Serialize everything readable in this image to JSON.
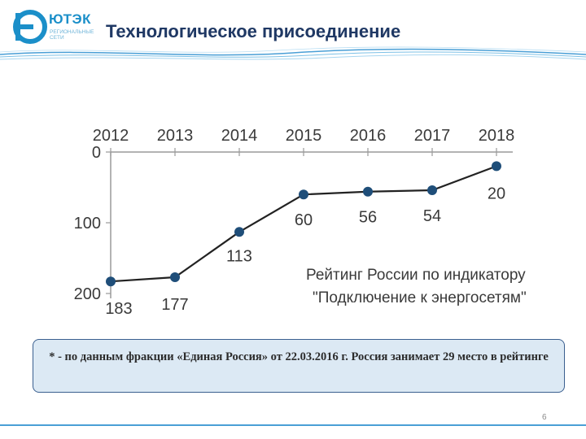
{
  "header": {
    "logo_text": "ЮТЭК",
    "logo_subtitle": "РЕГИОНАЛЬНЫЕ СЕТИ",
    "title": "Технологическое присоединение"
  },
  "colors": {
    "title": "#1f3864",
    "brand": "#1b8fc9",
    "line": "#222222",
    "point": "#1f4e79",
    "note_bg": "#dce9f4",
    "note_border": "#3a5f8f",
    "footer_line": "#4a9fd6"
  },
  "chart_data": {
    "type": "line",
    "categories": [
      "2012",
      "2013",
      "2014",
      "2015",
      "2016",
      "2017",
      "2018"
    ],
    "values": [
      183,
      177,
      113,
      60,
      56,
      54,
      20
    ],
    "data_labels": [
      "183",
      "177",
      "113",
      "60",
      "56",
      "54",
      "20"
    ],
    "y_ticks": [
      "0",
      "100",
      "200"
    ],
    "ylim": [
      0,
      200
    ],
    "y_inverted": true,
    "x_axis_position": "top",
    "grid": false,
    "annotation": [
      "Рейтинг России по индикатору",
      "\"Подключение к энергосетям\""
    ]
  },
  "note": {
    "text": "* - по данным фракции «Единая Россия» от 22.03.2016 г. Россия занимает 29 место в рейтинге"
  },
  "footer": {
    "page_number": "6"
  }
}
